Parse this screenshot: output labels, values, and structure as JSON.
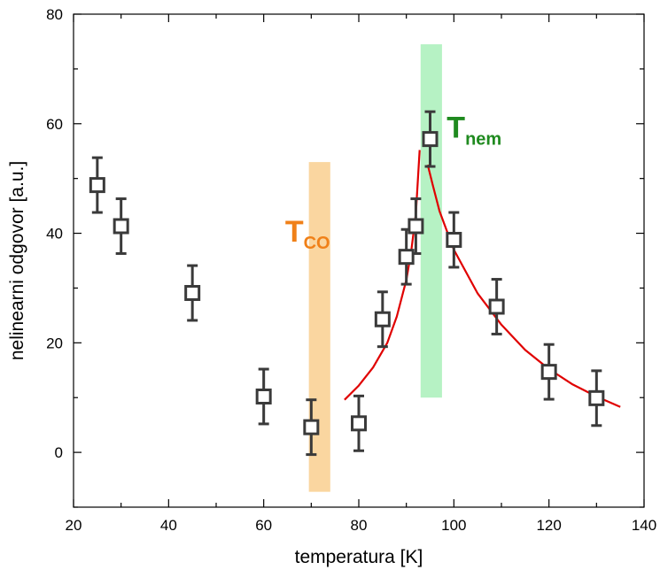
{
  "chart_data": {
    "type": "scatter",
    "title": "",
    "xlabel": "temperatura [K]",
    "ylabel": "nelinearni odgovor [a.u.]",
    "xlim": [
      20,
      140
    ],
    "ylim": [
      -10,
      80
    ],
    "xticks": [
      20,
      40,
      60,
      80,
      100,
      120,
      140
    ],
    "yticks": [
      0,
      20,
      40,
      60,
      80
    ],
    "grid": false,
    "series": [
      {
        "points": [
          {
            "x": 25,
            "y": 48.8,
            "err": 5
          },
          {
            "x": 30,
            "y": 41.3,
            "err": 5
          },
          {
            "x": 45,
            "y": 29.1,
            "err": 5
          },
          {
            "x": 60,
            "y": 10.2,
            "err": 5
          },
          {
            "x": 70,
            "y": 4.6,
            "err": 5
          },
          {
            "x": 80,
            "y": 5.3,
            "err": 5
          },
          {
            "x": 85,
            "y": 24.3,
            "err": 5
          },
          {
            "x": 90,
            "y": 35.7,
            "err": 5
          },
          {
            "x": 92,
            "y": 41.3,
            "err": 5
          },
          {
            "x": 95,
            "y": 57.2,
            "err": 5
          },
          {
            "x": 100,
            "y": 38.8,
            "err": 5
          },
          {
            "x": 109,
            "y": 26.6,
            "err": 5
          },
          {
            "x": 120,
            "y": 14.7,
            "err": 5
          },
          {
            "x": 130,
            "y": 9.9,
            "err": 5
          }
        ],
        "marker": "open-square",
        "color": "#3a3a3a"
      }
    ],
    "fit_curve": {
      "color": "#e00000",
      "left": [
        [
          77,
          9.6
        ],
        [
          80,
          12.2
        ],
        [
          83,
          15.5
        ],
        [
          86,
          20.0
        ],
        [
          88,
          24.8
        ],
        [
          90,
          31.5
        ],
        [
          91,
          36.5
        ],
        [
          92,
          43.5
        ],
        [
          92.8,
          55.2
        ]
      ],
      "right": [
        [
          94.5,
          52.5
        ],
        [
          95.5,
          49.0
        ],
        [
          97,
          44.0
        ],
        [
          100,
          37.0
        ],
        [
          105,
          29.0
        ],
        [
          110,
          23.3
        ],
        [
          115,
          18.7
        ],
        [
          120,
          15.2
        ],
        [
          125,
          12.4
        ],
        [
          130,
          10.2
        ],
        [
          135,
          8.3
        ]
      ]
    },
    "bands": [
      {
        "x0": 69.5,
        "x1": 74,
        "y0": -7.2,
        "y1": 53,
        "color": "#fad6a0",
        "label": "T",
        "sub": "CO",
        "label_color": "#f08018",
        "label_x": 64.5,
        "label_y": 38.5
      },
      {
        "x0": 93,
        "x1": 97.5,
        "y0": 10,
        "y1": 74.5,
        "color": "#b6f2c4",
        "label": "T",
        "sub": "nem",
        "label_color": "#1f8a1f",
        "label_x": 98.5,
        "label_y": 57.5
      }
    ]
  }
}
